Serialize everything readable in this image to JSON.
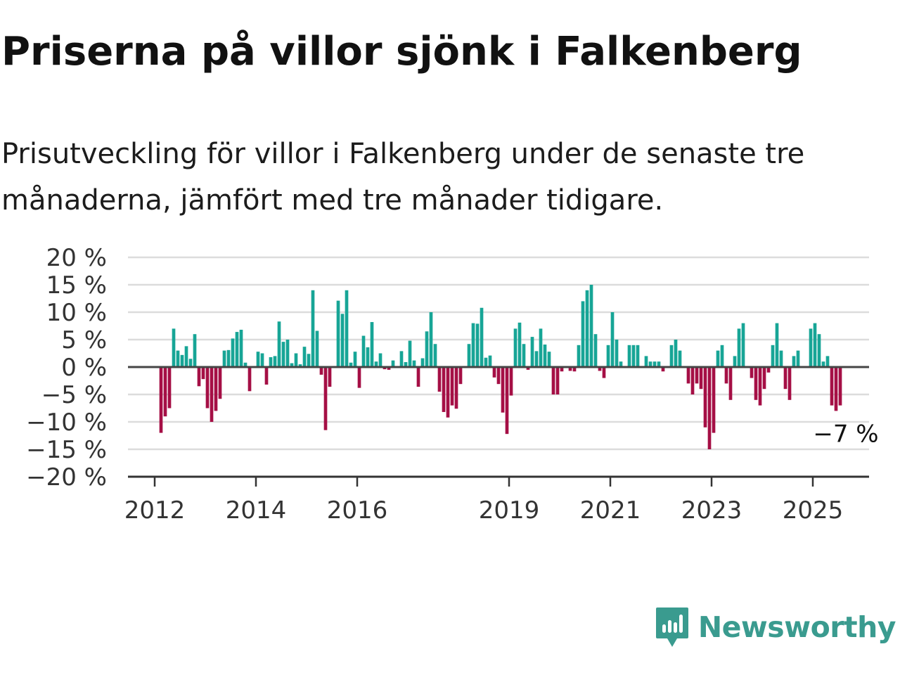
{
  "title": "Priserna på villor sjönk i Falkenberg",
  "subtitle": "Prisutveckling för villor i Falkenberg under de senaste tre månaderna, jämfört med tre månader tidigare.",
  "brand": {
    "name": "Newsworthy",
    "color": "#3a9b8f",
    "icon": "newsworthy-logo-icon"
  },
  "colors": {
    "positive": "#17a596",
    "negative": "#a50f45",
    "grid": "#dcdcdc",
    "axis": "#444444"
  },
  "chart_data": {
    "type": "bar",
    "title": "",
    "xlabel": "",
    "ylabel": "",
    "ylim": [
      -20,
      20
    ],
    "y_ticks": [
      20,
      15,
      10,
      5,
      0,
      -5,
      -10,
      -15,
      -20
    ],
    "y_tick_labels": [
      "20 %",
      "15 %",
      "10 %",
      "5 %",
      "0 %",
      "−5 %",
      "−10 %",
      "−15 %",
      "−20 %"
    ],
    "x_ticks": [
      {
        "year": 2012,
        "label": "2012"
      },
      {
        "year": 2014,
        "label": "2014"
      },
      {
        "year": 2016,
        "label": "2016"
      },
      {
        "year": 2019,
        "label": "2019"
      },
      {
        "year": 2021,
        "label": "2021"
      },
      {
        "year": 2023,
        "label": "2023"
      },
      {
        "year": 2025,
        "label": "2025"
      }
    ],
    "grid": true,
    "legend": "none",
    "start_month": "2012-02",
    "frequency": "monthly",
    "values": [
      -12,
      -9,
      -7.5,
      7,
      3,
      2.2,
      3.8,
      1.5,
      6,
      -3.5,
      -2.2,
      -7.5,
      -10,
      -8,
      -5.8,
      3,
      3.1,
      5.2,
      6.4,
      6.8,
      0.8,
      -4.4,
      0,
      2.8,
      2.5,
      -3.2,
      1.8,
      2,
      8.3,
      4.6,
      5,
      0.7,
      2.5,
      0.5,
      3.7,
      2.4,
      14,
      6.6,
      -1.4,
      -11.5,
      -3.6,
      0,
      12.1,
      9.7,
      14,
      0.8,
      2.8,
      -3.8,
      5.7,
      3.6,
      8.2,
      1,
      2.5,
      -0.4,
      -0.5,
      1.2,
      0,
      2.9,
      0.9,
      4.8,
      1.2,
      -3.6,
      1.6,
      6.5,
      10,
      4.2,
      -4.5,
      -8.2,
      -9.2,
      -7,
      -7.6,
      -3.1,
      0,
      4.2,
      8,
      7.9,
      10.8,
      1.7,
      2.1,
      -1.9,
      -3.1,
      -8.3,
      -12.2,
      -5.2,
      7,
      8.1,
      4.2,
      -0.5,
      5.5,
      2.9,
      7,
      4.1,
      2.8,
      -5,
      -5,
      -0.8,
      0,
      -0.7,
      -0.8,
      4,
      12,
      14,
      15,
      6,
      -0.7,
      -2,
      4,
      10,
      5,
      1,
      0,
      4,
      4,
      4,
      0,
      2,
      1,
      1,
      1,
      -0.8,
      0,
      4,
      5,
      3,
      0,
      -3,
      -5,
      -3,
      -4,
      -11,
      -15,
      -12,
      3,
      4,
      -3,
      -6,
      2,
      7,
      8,
      0,
      -2,
      -6,
      -7,
      -4,
      -1,
      4,
      8,
      3,
      -4,
      -6,
      2,
      3,
      0,
      0,
      7,
      8,
      6,
      1,
      2,
      -7,
      -8,
      -7
    ],
    "annotation": {
      "text": "−7 %",
      "value": -7,
      "month": "2025-06"
    }
  }
}
